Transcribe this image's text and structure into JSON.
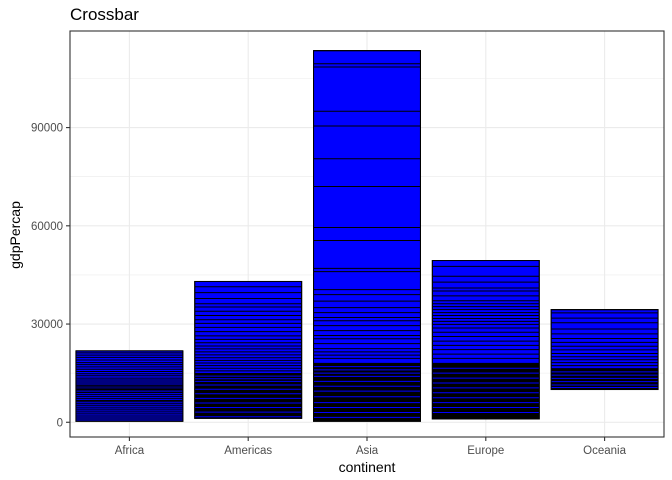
{
  "chart_data": {
    "type": "crossbar",
    "title": "Crossbar",
    "xlabel": "continent",
    "ylabel": "gdpPercap",
    "categories": [
      "Africa",
      "Americas",
      "Asia",
      "Europe",
      "Oceania"
    ],
    "y_ticks": [
      0,
      30000,
      60000,
      90000
    ],
    "y_tick_labels": [
      "0",
      "30000",
      "60000",
      "90000"
    ],
    "ylim": [
      -4500,
      119500
    ],
    "grid": true,
    "colors": {
      "fill": "#0000ff",
      "overlap": "#000000",
      "outline": "#000000",
      "grid": "#ebebeb",
      "panel_border": "#333333"
    },
    "crossbars": [
      {
        "category": "Africa",
        "ymin": 300,
        "ymax": 21800,
        "middles": [
          21800,
          21200,
          20500,
          19800,
          19000,
          18200,
          17600,
          16900,
          16200,
          15500,
          14800,
          14200,
          13500,
          12900,
          12300,
          11700,
          11200,
          10800,
          10400,
          10000,
          9600,
          9100,
          8500,
          7900,
          7300,
          6700,
          6100,
          5500,
          4900,
          4300,
          3700,
          3100,
          2500,
          1900,
          1300,
          700
        ]
      },
      {
        "category": "Americas",
        "ymin": 1200,
        "ymax": 43000,
        "middles": [
          43000,
          41400,
          39600,
          37800,
          36200,
          35200,
          33900,
          32600,
          31300,
          30200,
          29000,
          27700,
          26400,
          25300,
          24300,
          23300,
          22400,
          21500,
          20600,
          19700,
          18900,
          18100,
          17300,
          16500,
          15700,
          14900,
          14100,
          13300,
          12500,
          11400,
          10100,
          8700,
          7300,
          5900,
          4500,
          3100,
          1700
        ]
      },
      {
        "category": "Asia",
        "ymin": 300,
        "ymax": 113500,
        "middles": [
          113500,
          109500,
          108500,
          95000,
          90500,
          80500,
          72000,
          59500,
          55500,
          47000,
          46000,
          40500,
          39000,
          37000,
          35000,
          33500,
          32000,
          31000,
          29500,
          28000,
          26500,
          25500,
          24000,
          22500,
          21500,
          20500,
          19500,
          18000,
          17000,
          16000,
          15000,
          14000,
          12500,
          11000,
          9500,
          7800,
          6000,
          4500,
          3000,
          1500
        ]
      },
      {
        "category": "Europe",
        "ymin": 1000,
        "ymax": 49400,
        "middles": [
          49400,
          47600,
          44600,
          42800,
          41000,
          40100,
          38600,
          37100,
          36200,
          35300,
          34400,
          33500,
          32600,
          31700,
          30800,
          29900,
          28800,
          27500,
          26200,
          24800,
          23500,
          22200,
          20800,
          19500,
          18000,
          16500,
          15000,
          13500,
          12000,
          10500,
          9000,
          7500,
          6000,
          4500,
          3000
        ]
      },
      {
        "category": "Oceania",
        "ymin": 10000,
        "ymax": 34400,
        "middles": [
          34400,
          33400,
          31800,
          30400,
          28500,
          27000,
          25600,
          24400,
          23200,
          22100,
          21000,
          20000,
          19100,
          18200,
          17300,
          16400,
          15400,
          14400,
          13400,
          12400,
          11400,
          10600
        ]
      }
    ]
  }
}
